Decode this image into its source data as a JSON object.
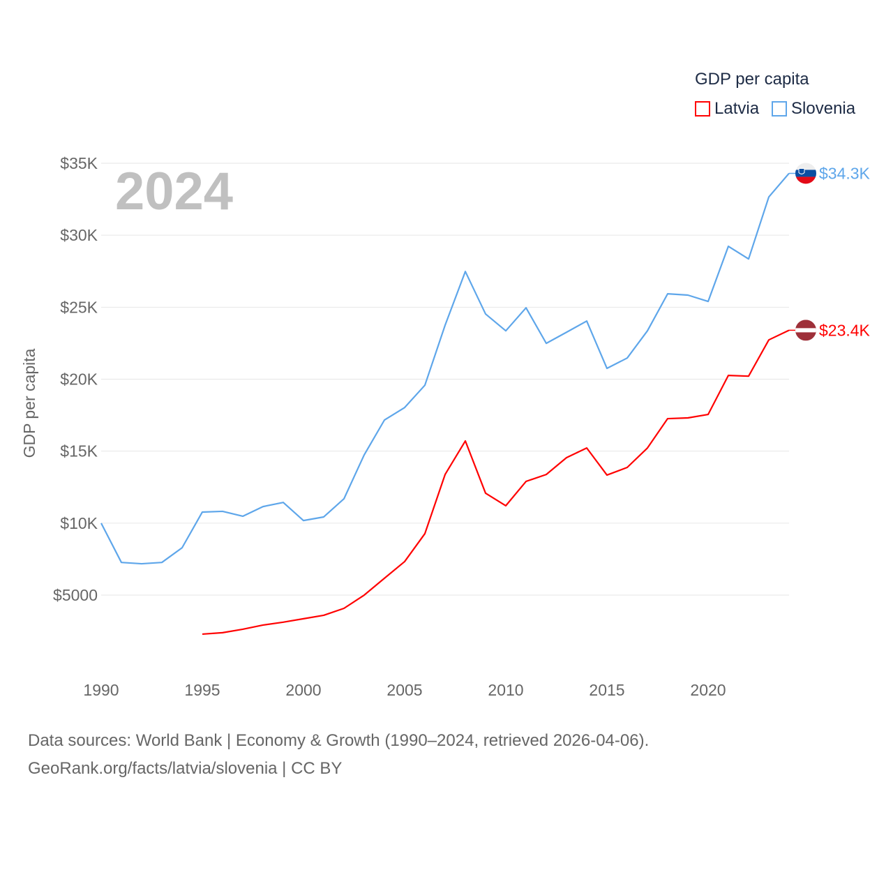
{
  "chart_data": {
    "type": "line",
    "title": "GDP per capita",
    "year_label": "2024",
    "ylabel": "GDP per capita",
    "xlabel": "",
    "xlim": [
      1990,
      2024
    ],
    "ylim": [
      0,
      35000
    ],
    "x_ticks": [
      "1990",
      "1995",
      "2000",
      "2005",
      "2010",
      "2015",
      "2020"
    ],
    "x_tick_values": [
      1990,
      1995,
      2000,
      2005,
      2010,
      2015,
      2020
    ],
    "y_ticks": [
      "$5000",
      "$10K",
      "$15K",
      "$20K",
      "$25K",
      "$30K",
      "$35K"
    ],
    "y_tick_values": [
      5000,
      10000,
      15000,
      20000,
      25000,
      30000,
      35000
    ],
    "grid": true,
    "legend_placement": "top-right",
    "series": [
      {
        "name": "Latvia",
        "color": "#ff0000",
        "end_label": "$23.4K",
        "x": [
          1995,
          1996,
          1997,
          1998,
          1999,
          2000,
          2001,
          2002,
          2003,
          2004,
          2005,
          2006,
          2007,
          2008,
          2009,
          2010,
          2011,
          2012,
          2013,
          2014,
          2015,
          2016,
          2017,
          2018,
          2019,
          2020,
          2021,
          2022,
          2023,
          2024
        ],
        "values": [
          2290,
          2390,
          2630,
          2920,
          3120,
          3360,
          3600,
          4080,
          5000,
          6170,
          7330,
          9270,
          13380,
          15710,
          12080,
          11210,
          12900,
          13380,
          14550,
          15220,
          13340,
          13870,
          15220,
          17260,
          17310,
          17550,
          20260,
          20210,
          22730,
          23400
        ]
      },
      {
        "name": "Slovenia",
        "color": "#5ea6ea",
        "end_label": "$34.3K",
        "x": [
          1990,
          1991,
          1992,
          1993,
          1994,
          1995,
          1996,
          1997,
          1998,
          1999,
          2000,
          2001,
          2002,
          2003,
          2004,
          2005,
          2006,
          2007,
          2008,
          2009,
          2010,
          2011,
          2012,
          2013,
          2014,
          2015,
          2016,
          2017,
          2018,
          2019,
          2020,
          2021,
          2022,
          2023,
          2024
        ],
        "values": [
          10000,
          7270,
          7180,
          7270,
          8290,
          10770,
          10820,
          10480,
          11150,
          11440,
          10180,
          10430,
          11690,
          14740,
          17160,
          18030,
          19580,
          23750,
          27480,
          24530,
          23360,
          24960,
          22490,
          23260,
          24040,
          20750,
          21470,
          23360,
          25930,
          25840,
          25400,
          29230,
          28350,
          32660,
          34300
        ]
      }
    ]
  },
  "footer": {
    "line1": "Data sources: World Bank | Economy & Growth (1990–2024, retrieved 2026-04-06).",
    "line2": "GeoRank.org/facts/latvia/slovenia | CC BY"
  }
}
